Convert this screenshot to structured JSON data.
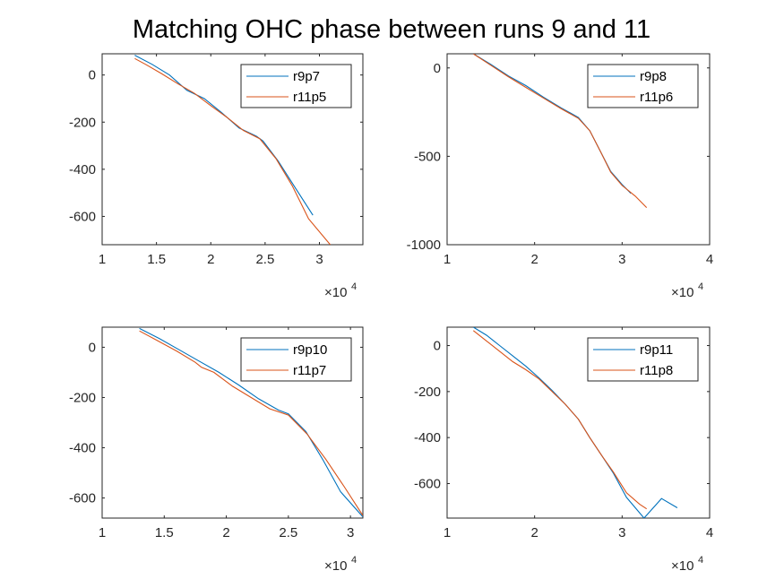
{
  "figure": {
    "title": "Matching OHC phase between runs 9 and 11"
  },
  "colors": {
    "series1": "#0072BD",
    "series2": "#D95319"
  },
  "chart_data": [
    {
      "type": "line",
      "xlim": [
        10000,
        34000
      ],
      "ylim": [
        -720,
        90
      ],
      "xticks": [
        10000,
        15000,
        20000,
        25000,
        30000
      ],
      "xtick_labels": [
        "1",
        "1.5",
        "2",
        "2.5",
        "3"
      ],
      "yticks": [
        0,
        -200,
        -400,
        -600
      ],
      "ytick_labels": [
        "0",
        "-200",
        "-400",
        "-600"
      ],
      "x_exponent_label": "×10",
      "x_exponent_power": "4",
      "legend_position": "top-right",
      "grid": false,
      "series": [
        {
          "name": "r9p7",
          "color": "#0072BD",
          "x": [
            13000,
            14600,
            16200,
            17800,
            19400,
            21000,
            22600,
            24200,
            24800,
            26200,
            27800,
            29400
          ],
          "y": [
            84,
            45,
            0,
            -65,
            -100,
            -160,
            -225,
            -260,
            -280,
            -365,
            -480,
            -595
          ]
        },
        {
          "name": "r11p5",
          "color": "#D95319",
          "x": [
            13000,
            14000,
            15500,
            17000,
            18500,
            20000,
            21500,
            23000,
            24500,
            26000,
            27500,
            29000,
            31000
          ],
          "y": [
            70,
            45,
            5,
            -38,
            -78,
            -130,
            -180,
            -235,
            -270,
            -355,
            -470,
            -610,
            -720
          ]
        }
      ]
    },
    {
      "type": "line",
      "xlim": [
        10000,
        40000
      ],
      "ylim": [
        -1000,
        80
      ],
      "xticks": [
        10000,
        20000,
        30000,
        40000
      ],
      "xtick_labels": [
        "1",
        "2",
        "3",
        "4"
      ],
      "yticks": [
        0,
        -500,
        -1000
      ],
      "ytick_labels": [
        "0",
        "-500",
        "-1000"
      ],
      "x_exponent_label": "×10",
      "x_exponent_power": "4",
      "legend_position": "top-right",
      "grid": false,
      "series": [
        {
          "name": "r9p8",
          "color": "#0072BD",
          "x": [
            13000,
            15000,
            17000,
            19000,
            21000,
            23000,
            25000,
            26300,
            27500,
            28700,
            30000,
            31000
          ],
          "y": [
            80,
            20,
            -45,
            -100,
            -165,
            -225,
            -280,
            -355,
            -470,
            -585,
            -660,
            -710
          ]
        },
        {
          "name": "r11p6",
          "color": "#D95319",
          "x": [
            13000,
            15000,
            17000,
            19000,
            21000,
            23000,
            25000,
            26300,
            27500,
            28700,
            30000,
            31500,
            32800
          ],
          "y": [
            80,
            15,
            -50,
            -110,
            -170,
            -230,
            -285,
            -355,
            -470,
            -590,
            -665,
            -725,
            -790
          ]
        }
      ]
    },
    {
      "type": "line",
      "xlim": [
        10000,
        31000
      ],
      "ylim": [
        -680,
        80
      ],
      "xticks": [
        10000,
        15000,
        20000,
        25000,
        30000
      ],
      "xtick_labels": [
        "1",
        "1.5",
        "2",
        "2.5",
        "3"
      ],
      "yticks": [
        0,
        -200,
        -400,
        -600
      ],
      "ytick_labels": [
        "0",
        "-200",
        "-400",
        "-600"
      ],
      "x_exponent_label": "×10",
      "x_exponent_power": "4",
      "legend_position": "top-right",
      "grid": false,
      "series": [
        {
          "name": "r9p10",
          "color": "#0072BD",
          "x": [
            13000,
            14600,
            16200,
            17800,
            19400,
            21000,
            22600,
            24200,
            25000,
            26400,
            27800,
            29200,
            31000
          ],
          "y": [
            75,
            35,
            -10,
            -55,
            -100,
            -150,
            -205,
            -250,
            -265,
            -335,
            -450,
            -575,
            -675
          ]
        },
        {
          "name": "r11p7",
          "color": "#D95319",
          "x": [
            13000,
            14500,
            16000,
            17500,
            18000,
            19000,
            20500,
            22000,
            23500,
            25000,
            26500,
            28000,
            29500,
            31000
          ],
          "y": [
            65,
            25,
            -15,
            -60,
            -80,
            -100,
            -155,
            -200,
            -245,
            -270,
            -345,
            -445,
            -555,
            -670
          ]
        }
      ]
    },
    {
      "type": "line",
      "xlim": [
        10000,
        40000
      ],
      "ylim": [
        -750,
        80
      ],
      "xticks": [
        10000,
        20000,
        30000,
        40000
      ],
      "xtick_labels": [
        "1",
        "2",
        "3",
        "4"
      ],
      "yticks": [
        0,
        -200,
        -400,
        -600
      ],
      "ytick_labels": [
        "0",
        "-200",
        "-400",
        "-600"
      ],
      "x_exponent_label": "×10",
      "x_exponent_power": "4",
      "legend_position": "top-right",
      "grid": false,
      "series": [
        {
          "name": "r9p11",
          "color": "#0072BD",
          "x": [
            13000,
            14500,
            16000,
            17500,
            19000,
            20500,
            22000,
            23500,
            25000,
            26300,
            27700,
            29000,
            30500,
            32500,
            34500,
            36300
          ],
          "y": [
            80,
            45,
            0,
            -45,
            -90,
            -140,
            -195,
            -255,
            -320,
            -400,
            -480,
            -555,
            -660,
            -750,
            -665,
            -705
          ]
        },
        {
          "name": "r11p8",
          "color": "#D95319",
          "x": [
            13000,
            14500,
            16000,
            17500,
            19000,
            20500,
            22000,
            23500,
            25000,
            26300,
            27700,
            29000,
            30500,
            32000,
            32800
          ],
          "y": [
            65,
            20,
            -25,
            -70,
            -105,
            -145,
            -200,
            -255,
            -320,
            -400,
            -480,
            -550,
            -640,
            -690,
            -710
          ]
        }
      ]
    }
  ]
}
